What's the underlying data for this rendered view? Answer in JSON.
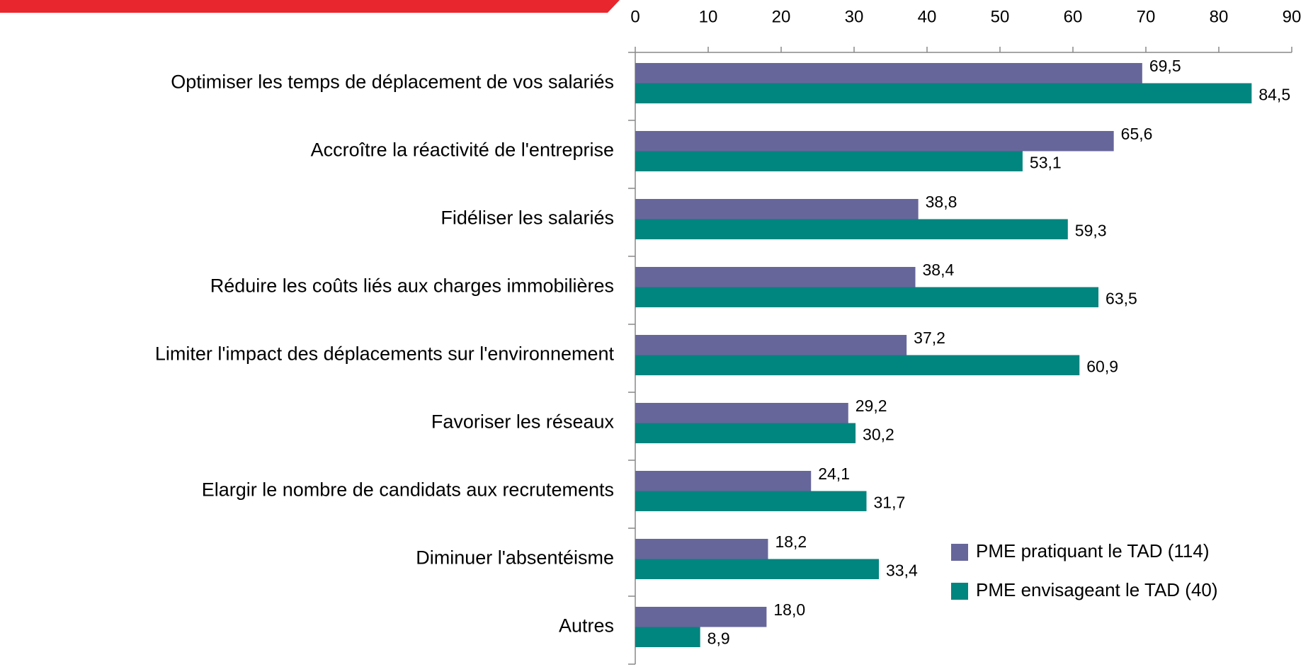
{
  "chart_data": {
    "type": "barh",
    "categories": [
      "Optimiser les temps de déplacement de vos salariés",
      "Accroître la réactivité de l'entreprise",
      "Fidéliser les salariés",
      "Réduire les coûts liés aux charges immobilières",
      "Limiter l'impact des déplacements sur l'environnement",
      "Favoriser les réseaux",
      "Elargir le nombre de candidats aux recrutements",
      "Diminuer l'absentéisme",
      "Autres"
    ],
    "series": [
      {
        "name": "PME pratiquant le TAD (114)",
        "color": "#67669b",
        "values": [
          69.5,
          65.6,
          38.8,
          38.4,
          37.2,
          29.2,
          24.1,
          18.2,
          18.0
        ],
        "value_labels": [
          "69,5",
          "65,6",
          "38,8",
          "38,4",
          "37,2",
          "29,2",
          "24,1",
          "18,2",
          "18,0"
        ]
      },
      {
        "name": "PME envisageant le TAD (40)",
        "color": "#00857f",
        "values": [
          84.5,
          53.1,
          59.3,
          63.5,
          60.9,
          30.2,
          31.7,
          33.4,
          8.9
        ],
        "value_labels": [
          "84,5",
          "53,1",
          "59,3",
          "63,5",
          "60,9",
          "30,2",
          "31,7",
          "33,4",
          "8,9"
        ]
      }
    ],
    "xlim": [
      0,
      90
    ],
    "xticks": [
      0,
      10,
      20,
      30,
      40,
      50,
      60,
      70,
      80,
      90
    ],
    "legend": "lower right"
  }
}
